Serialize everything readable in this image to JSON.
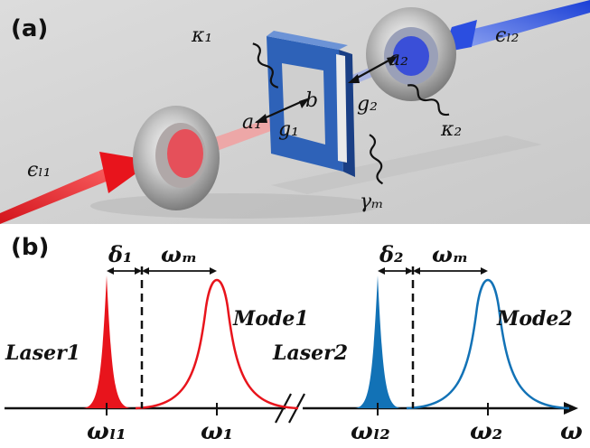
{
  "panel_a": {
    "label": "(a)",
    "symbols": {
      "kappa1": "κ₁",
      "kappa2": "κ₂",
      "eps_l1": "ϵₗ₁",
      "eps_l2": "ϵₗ₂",
      "a1": "a₁",
      "a2": "a₂",
      "g1": "g₁",
      "g2": "g₂",
      "b": "b",
      "gamma_m": "γₘ"
    }
  },
  "panel_b": {
    "label": "(b)",
    "delta1": "δ₁",
    "delta2": "δ₂",
    "omega_m_1": "ωₘ",
    "omega_m_2": "ωₘ",
    "laser1": "Laser1",
    "laser2": "Laser2",
    "mode1": "Mode1",
    "mode2": "Mode2",
    "omega_l1": "ωₗ₁",
    "omega_1": "ω₁",
    "omega_l2": "ωₗ₂",
    "omega_2": "ω₂",
    "omega_axis": "ω"
  },
  "colors": {
    "red": "#e8141c",
    "blue": "#1272b6"
  }
}
